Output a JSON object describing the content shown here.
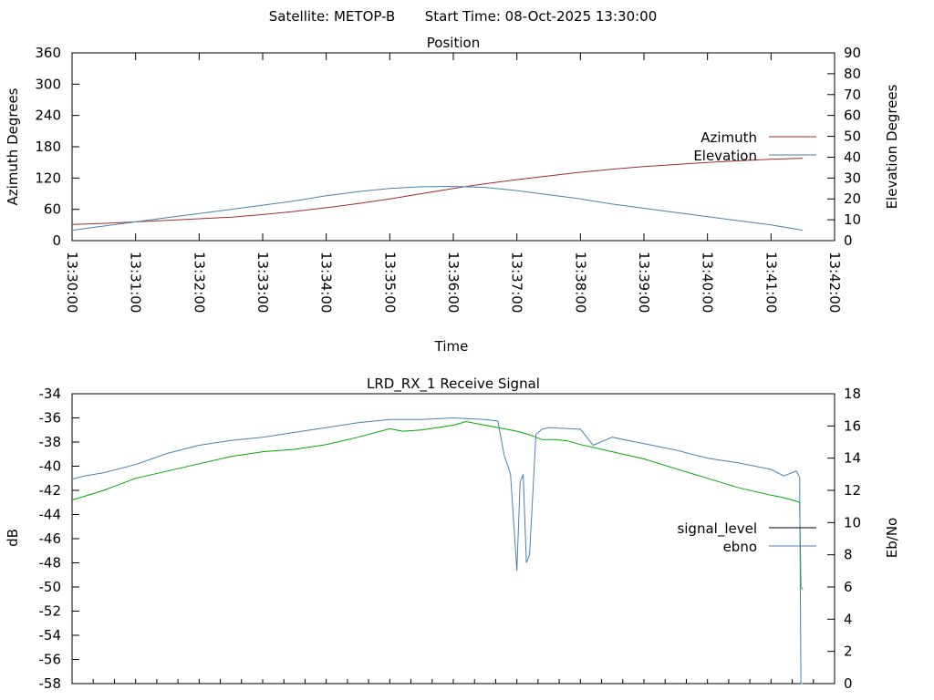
{
  "header": {
    "satellite_label": "Satellite: METOP-B",
    "start_time_label": "Start Time: 08-Oct-2025 13:30:00"
  },
  "chart_data": [
    {
      "type": "line",
      "title": "Position",
      "xlabel": "Time",
      "ylabel": "Azimuth Degrees",
      "y2label": "Elevation Degrees",
      "ylim": [
        0,
        360
      ],
      "y2lim": [
        0,
        90
      ],
      "yticks": [
        "0",
        "60",
        "120",
        "180",
        "240",
        "300",
        "360"
      ],
      "y2ticks": [
        "0",
        "10",
        "20",
        "30",
        "40",
        "50",
        "60",
        "70",
        "80",
        "90"
      ],
      "xticks": [
        "13:30:00",
        "13:31:00",
        "13:32:00",
        "13:33:00",
        "13:34:00",
        "13:35:00",
        "13:36:00",
        "13:37:00",
        "13:38:00",
        "13:39:00",
        "13:40:00",
        "13:41:00",
        "13:42:00"
      ],
      "xlim_minutes": [
        0,
        12
      ],
      "legend_position": "right",
      "grid": false,
      "series": [
        {
          "name": "Azimuth",
          "axis": "y",
          "color": "#a52a2a",
          "x": [
            0,
            0.5,
            1,
            1.5,
            2,
            2.5,
            3,
            3.5,
            4,
            4.5,
            5,
            5.5,
            6,
            6.5,
            7,
            7.5,
            8,
            8.5,
            9,
            9.5,
            10,
            10.5,
            11,
            11.5
          ],
          "values": [
            31,
            33,
            36,
            39,
            42,
            45,
            50,
            56,
            63,
            71,
            80,
            90,
            100,
            109,
            117,
            124,
            131,
            137,
            142,
            146,
            150,
            153,
            156,
            158
          ]
        },
        {
          "name": "Elevation",
          "axis": "y2",
          "color": "#4682b4",
          "x": [
            0,
            0.5,
            1,
            1.5,
            2,
            2.5,
            3,
            3.5,
            4,
            4.5,
            5,
            5.5,
            6,
            6.5,
            7,
            7.5,
            8,
            8.5,
            9,
            9.5,
            10,
            10.5,
            11,
            11.5
          ],
          "values": [
            5,
            7,
            9,
            11,
            13,
            15,
            17,
            19,
            21.5,
            23.5,
            25,
            25.8,
            26,
            25.5,
            24,
            22,
            20,
            17.5,
            15.5,
            13.5,
            11.5,
            9.5,
            7.5,
            5
          ]
        }
      ]
    },
    {
      "type": "line",
      "title": "LRD_RX_1 Receive Signal",
      "ylabel": "dB",
      "y2label": "Eb/No",
      "ylim": [
        -58,
        -34
      ],
      "y2lim": [
        0,
        18
      ],
      "yticks": [
        "-58",
        "-56",
        "-54",
        "-52",
        "-50",
        "-48",
        "-46",
        "-44",
        "-42",
        "-40",
        "-38",
        "-36",
        "-34"
      ],
      "y2ticks": [
        "0",
        "2",
        "4",
        "6",
        "8",
        "10",
        "12",
        "14",
        "16",
        "18"
      ],
      "xlim_minutes": [
        0,
        12
      ],
      "legend_position": "right",
      "grid": false,
      "series": [
        {
          "name": "signal_level",
          "axis": "y",
          "color": "#00aa00",
          "legend_color": "#000000",
          "x": [
            0,
            0.5,
            1,
            1.5,
            2,
            2.5,
            3,
            3.5,
            4,
            4.5,
            5,
            5.2,
            5.5,
            6,
            6.2,
            6.5,
            7,
            7.2,
            7.4,
            7.6,
            7.8,
            8,
            8.5,
            9,
            9.5,
            10,
            10.5,
            11,
            11.2,
            11.4,
            11.45,
            11.47,
            11.5
          ],
          "values": [
            -42.8,
            -42.0,
            -41.0,
            -40.4,
            -39.8,
            -39.2,
            -38.8,
            -38.6,
            -38.2,
            -37.6,
            -36.9,
            -37.1,
            -37.0,
            -36.6,
            -36.3,
            -36.6,
            -37.1,
            -37.4,
            -37.8,
            -37.8,
            -37.9,
            -38.2,
            -38.8,
            -39.4,
            -40.2,
            -41.0,
            -41.8,
            -42.4,
            -42.6,
            -42.9,
            -43.0,
            -50.0,
            -50.2
          ]
        },
        {
          "name": "ebno",
          "axis": "y2",
          "color": "#4682b4",
          "x": [
            0,
            0.2,
            0.5,
            1,
            1.5,
            2,
            2.5,
            3,
            3.5,
            4,
            4.5,
            5,
            5.5,
            6,
            6.5,
            6.7,
            6.8,
            6.9,
            7.0,
            7.05,
            7.1,
            7.15,
            7.2,
            7.3,
            7.4,
            7.5,
            8,
            8.2,
            8.5,
            9,
            9.5,
            10,
            10.5,
            11,
            11.2,
            11.4,
            11.45,
            11.47,
            11.5
          ],
          "values": [
            12.7,
            12.9,
            13.1,
            13.6,
            14.3,
            14.8,
            15.1,
            15.3,
            15.6,
            15.9,
            16.2,
            16.4,
            16.4,
            16.5,
            16.4,
            16.3,
            14.2,
            13.0,
            7.0,
            12.5,
            13.0,
            7.5,
            8.0,
            15.5,
            15.8,
            15.9,
            15.8,
            14.8,
            15.3,
            14.9,
            14.5,
            14.0,
            13.7,
            13.3,
            12.9,
            13.2,
            12.8,
            0.0,
            0.0
          ]
        }
      ]
    }
  ]
}
